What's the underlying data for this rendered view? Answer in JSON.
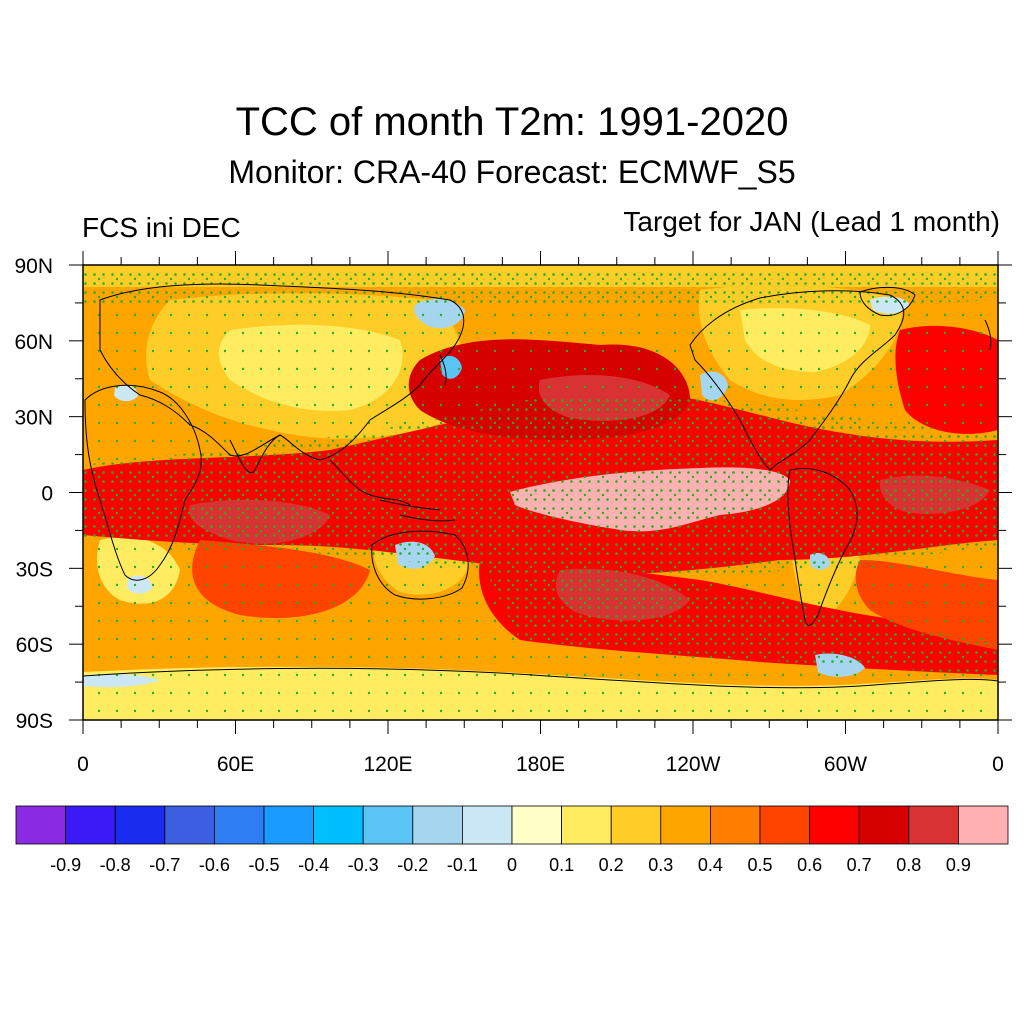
{
  "title": "TCC of month T2m: 1991-2020",
  "subtitle": "Monitor: CRA-40   Forecast: ECMWF_S5",
  "left_label": "FCS ini DEC",
  "right_label": "Target for JAN (Lead 1 month)",
  "map": {
    "lat_labels": [
      "90N",
      "60N",
      "30N",
      "0",
      "30S",
      "60S",
      "90S"
    ],
    "lat_values": [
      90,
      60,
      30,
      0,
      -30,
      -60,
      -90
    ],
    "lon_labels": [
      "0",
      "60E",
      "120E",
      "180E",
      "120W",
      "60W",
      "0"
    ],
    "lon_values": [
      0,
      60,
      120,
      180,
      240,
      300,
      360
    ],
    "stipple_color": "#22b022",
    "coast_color": "#000000"
  },
  "colorbar": {
    "colors": [
      "#8a2be2",
      "#3a1bf5",
      "#1a2cf0",
      "#3b5fe0",
      "#2e7df2",
      "#1a9bff",
      "#00bfff",
      "#5cc4f4",
      "#a6d5f0",
      "#cce8f6",
      "#ffffc8",
      "#ffec60",
      "#ffcd28",
      "#ffa500",
      "#ff7d00",
      "#ff4400",
      "#ff0000",
      "#d70000",
      "#d83232",
      "#ffb0b0"
    ],
    "tick_labels": [
      "-0.9",
      "-0.8",
      "-0.7",
      "-0.6",
      "-0.5",
      "-0.4",
      "-0.3",
      "-0.2",
      "-0.1",
      "0",
      "0.1",
      "0.2",
      "0.3",
      "0.4",
      "0.5",
      "0.6",
      "0.7",
      "0.8",
      "0.9"
    ]
  }
}
